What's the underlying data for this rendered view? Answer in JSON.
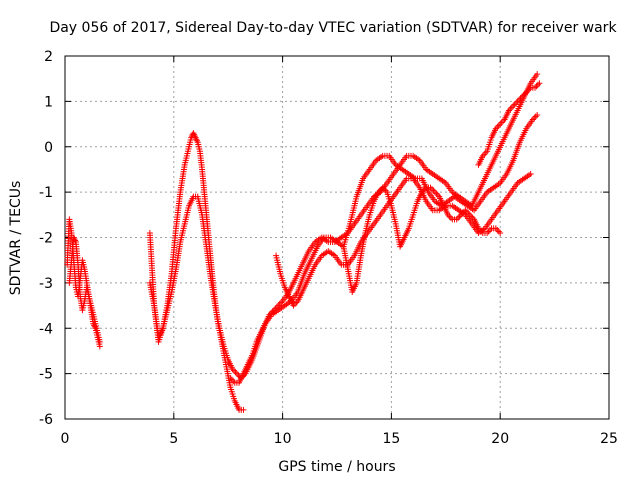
{
  "chart_data": {
    "type": "scatter",
    "title": "Day 056 of 2017, Sidereal Day-to-day VTEC variation (SDTVAR) for receiver wark",
    "xlabel": "GPS time / hours",
    "ylabel": "SDTVAR / TECUs",
    "xlim": [
      0,
      25
    ],
    "ylim": [
      -6,
      2
    ],
    "xticks": [
      "0",
      "5",
      "10",
      "15",
      "20",
      "25"
    ],
    "yticks": [
      "2",
      "1",
      "0",
      "-1",
      "-2",
      "-3",
      "-4",
      "-5",
      "-6"
    ],
    "grid": true,
    "marker": "plus",
    "color": "#ff0000",
    "series": [
      {
        "x": [
          0.1,
          0.2,
          0.3,
          0.4,
          0.5,
          0.6,
          0.7,
          0.8,
          0.9,
          1.0,
          1.1,
          1.2,
          1.3,
          1.4,
          1.5,
          1.6
        ],
        "y": [
          -2.6,
          -1.6,
          -1.9,
          -2.5,
          -3.1,
          -3.3,
          -2.9,
          -2.5,
          -2.7,
          -3.0,
          -3.3,
          -3.5,
          -3.7,
          -3.9,
          -4.1,
          -4.3
        ]
      },
      {
        "x": [
          0.2,
          0.3,
          0.4,
          0.5,
          0.6,
          0.7,
          0.8,
          0.9,
          1.0,
          1.1,
          1.2,
          1.3,
          1.4,
          1.5,
          1.6
        ],
        "y": [
          -3.0,
          -2.5,
          -2.0,
          -2.1,
          -2.6,
          -3.3,
          -3.6,
          -3.4,
          -3.1,
          -3.3,
          -3.6,
          -3.9,
          -4.0,
          -4.2,
          -4.4
        ]
      },
      {
        "x": [
          3.9,
          4.1,
          4.3,
          4.5,
          4.7,
          4.9,
          5.1,
          5.3,
          5.5,
          5.7,
          5.8,
          5.9,
          6.0,
          6.1,
          6.2,
          6.3,
          6.4,
          6.5,
          6.6,
          6.7,
          6.8,
          6.9,
          7.0,
          7.2,
          7.4,
          7.6,
          7.8,
          8.0,
          8.2
        ],
        "y": [
          -3.0,
          -3.5,
          -4.3,
          -4.0,
          -3.5,
          -2.8,
          -1.8,
          -1.0,
          -0.4,
          0.0,
          0.2,
          0.3,
          0.2,
          0.1,
          -0.1,
          -0.5,
          -1.0,
          -1.5,
          -2.0,
          -2.5,
          -3.0,
          -3.4,
          -3.8,
          -4.3,
          -4.8,
          -5.3,
          -5.6,
          -5.8,
          -5.8
        ]
      },
      {
        "x": [
          3.9,
          4.1,
          4.3,
          4.5,
          4.7,
          4.9,
          5.1,
          5.3,
          5.5,
          5.7,
          5.9,
          6.1,
          6.3,
          6.5,
          6.7,
          6.9,
          7.1,
          7.3,
          7.5,
          7.7,
          7.9,
          8.1,
          8.3,
          8.6,
          8.9,
          9.2,
          9.5,
          9.8,
          10.1,
          10.4,
          10.7,
          11.0,
          11.3,
          11.6,
          11.9,
          12.2,
          12.5,
          12.8,
          13.1,
          13.4,
          13.7,
          14.0,
          14.3,
          14.6,
          14.9,
          15.2,
          15.5,
          15.8,
          16.1,
          16.4,
          16.7,
          17.0,
          17.3,
          17.6,
          17.9,
          18.2,
          18.5,
          18.8,
          19.1,
          19.4,
          19.7,
          20.0,
          20.3,
          20.6,
          20.9,
          21.2,
          21.5,
          21.7
        ],
        "y": [
          -1.9,
          -3.5,
          -4.2,
          -4.0,
          -3.6,
          -3.2,
          -2.7,
          -2.1,
          -1.7,
          -1.3,
          -1.1,
          -1.1,
          -1.5,
          -2.2,
          -2.9,
          -3.5,
          -4.0,
          -4.4,
          -4.7,
          -4.9,
          -5.0,
          -5.1,
          -5.0,
          -4.7,
          -4.3,
          -3.9,
          -3.7,
          -3.6,
          -3.5,
          -3.4,
          -3.2,
          -2.8,
          -2.5,
          -2.2,
          -2.0,
          -2.0,
          -2.1,
          -2.2,
          -1.7,
          -1.1,
          -0.7,
          -0.5,
          -0.3,
          -0.2,
          -0.2,
          -0.4,
          -0.5,
          -0.6,
          -0.7,
          -0.7,
          -1.0,
          -1.2,
          -1.3,
          -1.2,
          -1.1,
          -1.2,
          -1.3,
          -1.4,
          -1.2,
          -1.0,
          -0.9,
          -0.8,
          -0.6,
          -0.3,
          0.1,
          0.4,
          0.6,
          0.7
        ]
      },
      {
        "x": [
          7.6,
          7.8,
          8.0,
          8.2,
          8.4,
          8.6,
          8.8,
          9.0,
          9.2,
          9.4,
          9.6,
          9.8,
          10.0,
          10.3,
          10.6,
          10.9,
          11.2,
          11.5,
          11.8,
          12.1,
          12.4,
          12.7,
          13.0,
          13.3,
          13.6,
          13.9,
          14.2,
          14.5,
          14.8,
          15.1,
          15.4,
          15.7,
          16.0,
          16.3,
          16.6,
          16.9,
          17.2,
          17.5,
          17.8,
          18.1,
          18.4,
          18.7,
          19.0,
          19.3,
          19.6,
          19.9,
          20.2,
          20.5,
          20.8,
          21.1,
          21.4,
          21.7
        ],
        "y": [
          -5.1,
          -5.2,
          -5.2,
          -5.0,
          -4.8,
          -4.6,
          -4.3,
          -4.1,
          -3.9,
          -3.7,
          -3.6,
          -3.5,
          -3.4,
          -3.2,
          -2.9,
          -2.6,
          -2.3,
          -2.1,
          -2.0,
          -2.1,
          -2.1,
          -2.0,
          -1.9,
          -1.7,
          -1.5,
          -1.3,
          -1.1,
          -1.0,
          -0.8,
          -0.6,
          -0.4,
          -0.2,
          -0.2,
          -0.3,
          -0.5,
          -0.6,
          -0.7,
          -0.8,
          -1.0,
          -1.1,
          -1.2,
          -1.3,
          -1.0,
          -0.7,
          -0.4,
          -0.1,
          0.2,
          0.5,
          0.8,
          1.1,
          1.4,
          1.6
        ]
      },
      {
        "x": [
          9.7,
          9.9,
          10.1,
          10.3,
          10.5,
          10.7,
          10.9,
          11.2,
          11.5,
          11.8,
          12.1,
          12.4,
          12.7,
          13.0,
          13.3,
          13.6,
          13.9,
          14.2,
          14.5,
          14.8,
          15.1,
          15.4,
          15.7,
          16.0,
          16.3,
          16.6,
          16.9,
          17.2,
          17.5,
          17.8,
          18.1,
          18.4,
          18.7,
          19.0,
          19.3,
          19.6,
          19.9,
          20.2,
          20.5,
          20.8,
          21.1,
          21.4
        ],
        "y": [
          -2.4,
          -2.8,
          -3.1,
          -3.3,
          -3.5,
          -3.4,
          -3.2,
          -2.9,
          -2.6,
          -2.4,
          -2.3,
          -2.4,
          -2.6,
          -2.6,
          -2.4,
          -2.1,
          -1.9,
          -1.7,
          -1.5,
          -1.3,
          -1.1,
          -0.9,
          -0.7,
          -0.7,
          -0.9,
          -1.2,
          -1.4,
          -1.4,
          -1.3,
          -1.3,
          -1.4,
          -1.5,
          -1.7,
          -1.9,
          -1.8,
          -1.6,
          -1.4,
          -1.2,
          -1.0,
          -0.8,
          -0.7,
          -0.6
        ]
      },
      {
        "x": [
          12.8,
          13.0,
          13.2,
          13.4,
          13.6,
          13.8,
          14.0,
          14.2,
          14.4,
          14.6,
          14.8,
          15.0,
          15.2,
          15.4,
          15.6,
          15.8,
          16.0,
          16.2,
          16.4,
          16.6,
          16.8,
          17.0,
          17.2,
          17.4,
          17.6,
          17.8,
          18.0,
          18.2,
          18.4,
          18.6,
          18.8,
          19.0,
          19.2,
          19.4,
          19.6,
          19.8,
          20.0
        ],
        "y": [
          -2.2,
          -2.7,
          -3.2,
          -3.0,
          -2.4,
          -1.9,
          -1.5,
          -1.2,
          -1.0,
          -0.9,
          -1.0,
          -1.3,
          -1.7,
          -2.2,
          -2.0,
          -1.8,
          -1.5,
          -1.2,
          -1.0,
          -0.9,
          -0.9,
          -1.0,
          -1.1,
          -1.3,
          -1.5,
          -1.6,
          -1.6,
          -1.5,
          -1.4,
          -1.5,
          -1.6,
          -1.8,
          -1.9,
          -1.9,
          -1.8,
          -1.8,
          -1.9
        ]
      },
      {
        "x": [
          19.0,
          19.2,
          19.4,
          19.6,
          19.8,
          20.0,
          20.2,
          20.4,
          20.6,
          20.8,
          21.0,
          21.2,
          21.4,
          21.6,
          21.8
        ],
        "y": [
          -0.4,
          -0.2,
          -0.1,
          0.2,
          0.4,
          0.5,
          0.6,
          0.8,
          0.9,
          1.0,
          1.1,
          1.2,
          1.3,
          1.3,
          1.4
        ]
      }
    ]
  }
}
